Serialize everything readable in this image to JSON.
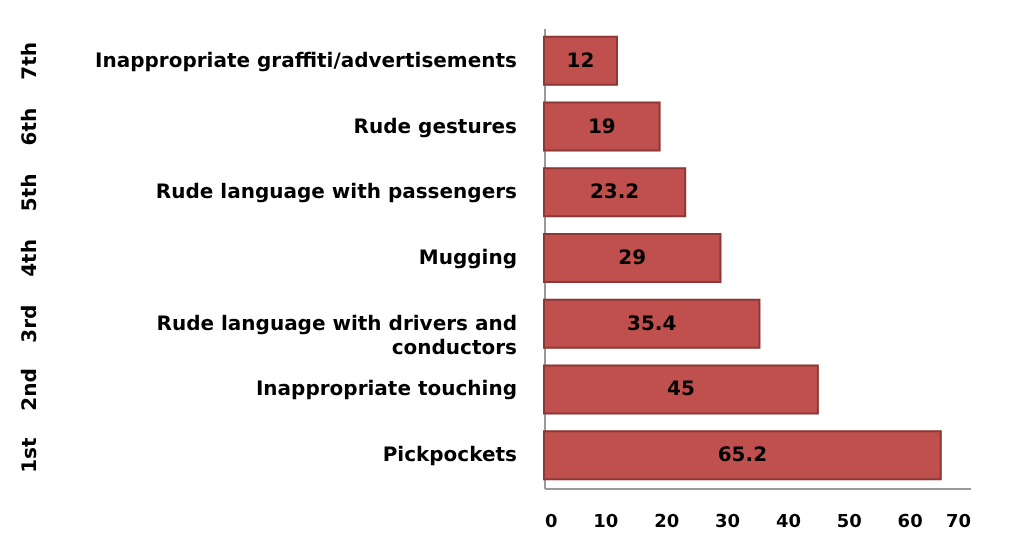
{
  "chart_data": {
    "type": "bar",
    "orientation": "horizontal",
    "categories": [
      "Inappropriate graffiti/advertisements",
      "Rude gestures",
      "Rude language with passengers",
      "Mugging",
      "Rude language with drivers and conductors",
      "Inappropriate touching",
      "Pickpockets"
    ],
    "values": [
      12,
      19,
      23.2,
      29,
      35.4,
      45,
      65.2
    ],
    "color": "#c0504d",
    "xlim": [
      0,
      70
    ],
    "xticks": [
      0,
      10,
      20,
      30,
      40,
      50,
      60,
      70
    ],
    "data_labels": true,
    "grid": false,
    "annotations": [
      "7th",
      "6th",
      "5th",
      "4th",
      "3rd",
      "2nd",
      "1st"
    ]
  }
}
